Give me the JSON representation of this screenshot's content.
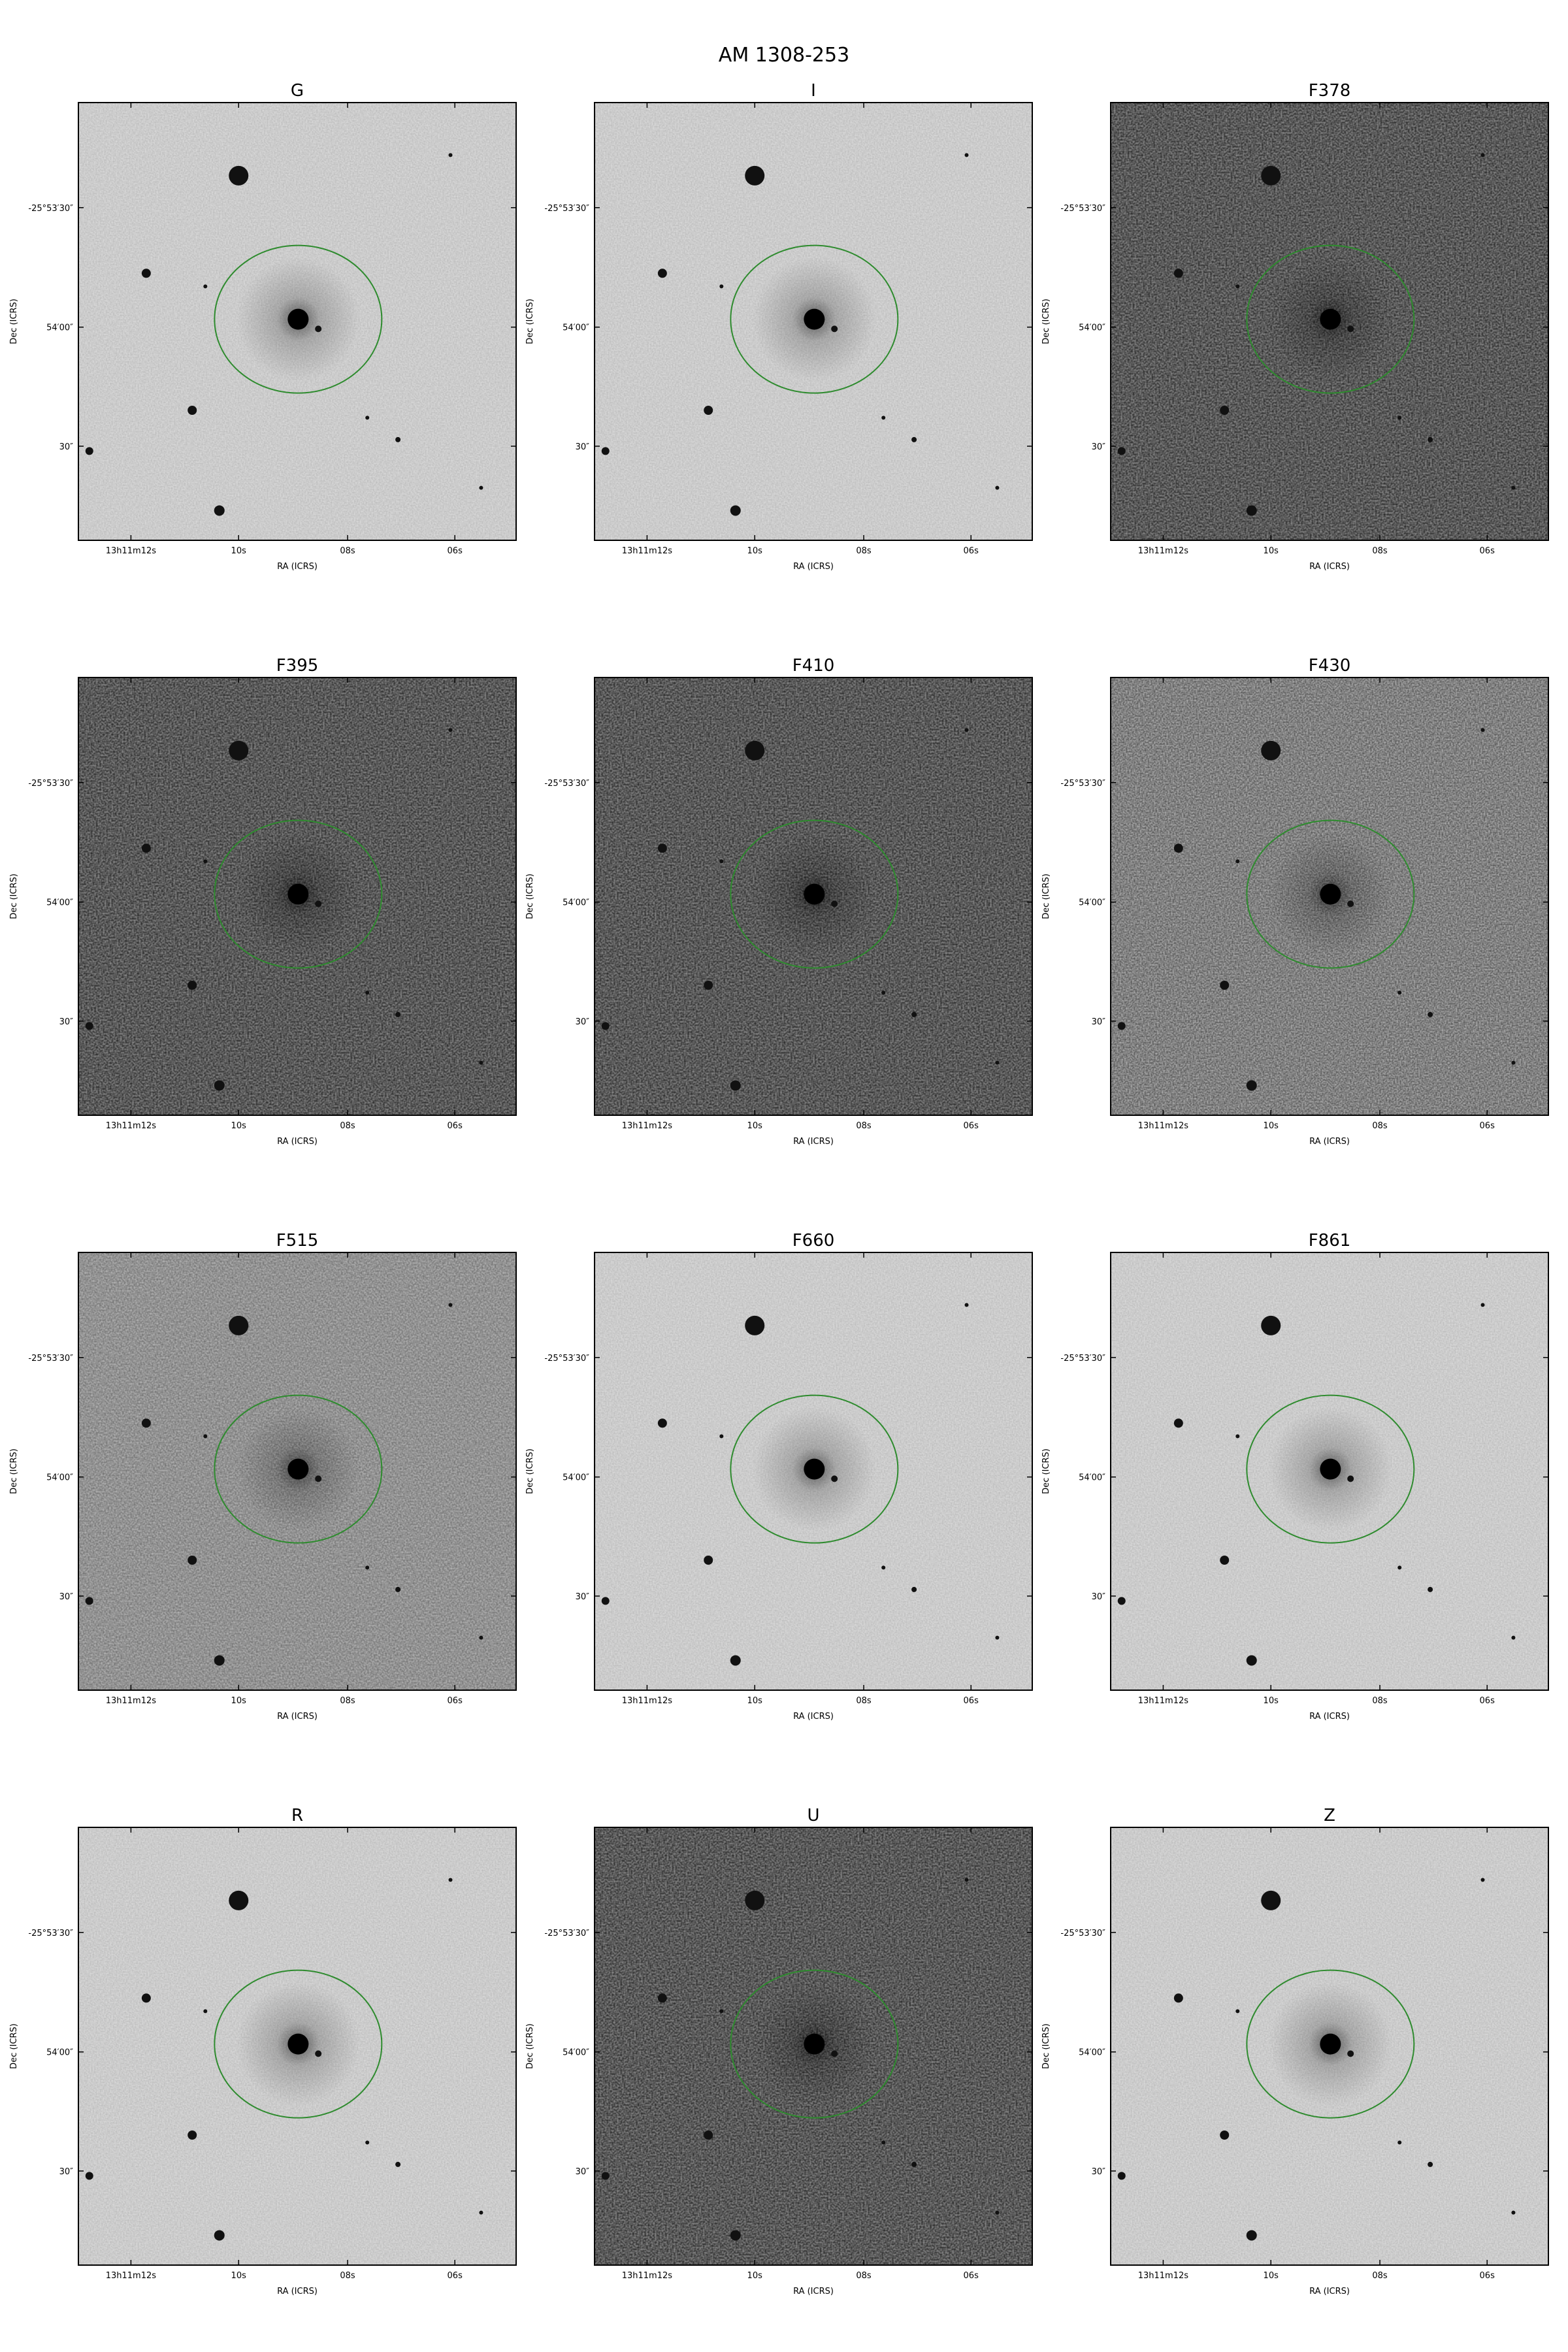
{
  "figure": {
    "title": "AM 1308-253"
  },
  "axes": {
    "xlabel": "RA (ICRS)",
    "ylabel": "Dec (ICRS)",
    "xticks": [
      "13h11m12s",
      "10s",
      "08s",
      "06s"
    ],
    "yticks": [
      "-25°53′30″",
      "54′00″",
      "30″"
    ]
  },
  "panels": [
    {
      "title": "G",
      "style": "light"
    },
    {
      "title": "I",
      "style": "light"
    },
    {
      "title": "F378",
      "style": "noisy"
    },
    {
      "title": "F395",
      "style": "noisy"
    },
    {
      "title": "F410",
      "style": "noisy"
    },
    {
      "title": "F430",
      "style": "noisy-light"
    },
    {
      "title": "F515",
      "style": "medium"
    },
    {
      "title": "F660",
      "style": "light"
    },
    {
      "title": "F861",
      "style": "light"
    },
    {
      "title": "R",
      "style": "light"
    },
    {
      "title": "U",
      "style": "noisy"
    },
    {
      "title": "Z",
      "style": "light"
    }
  ],
  "colors": {
    "aperture": "#2e8b2e",
    "axes": "#000000"
  }
}
